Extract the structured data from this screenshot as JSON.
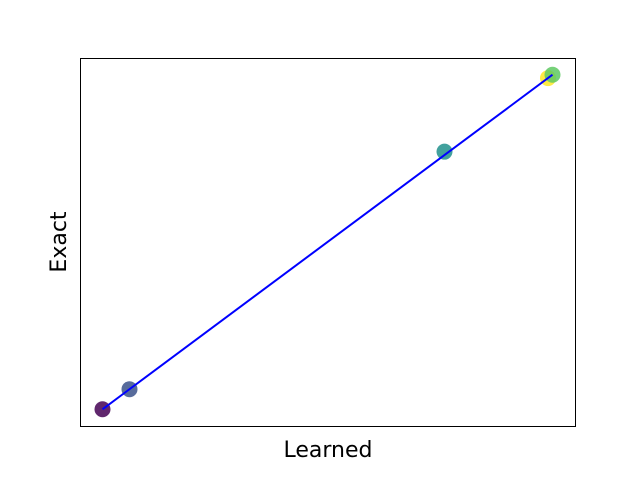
{
  "chart_data": {
    "type": "scatter",
    "xlabel": "Learned",
    "ylabel": "Exact",
    "ticks_visible": false,
    "grid": false,
    "xlim": [
      -0.05,
      1.05
    ],
    "ylim": [
      -0.05,
      1.05
    ],
    "points": [
      {
        "x": 0.0,
        "y": 0.0,
        "color": "#440154"
      },
      {
        "x": 0.06,
        "y": 0.06,
        "color": "#3b528b"
      },
      {
        "x": 0.76,
        "y": 0.77,
        "color": "#21918c"
      },
      {
        "x": 0.99,
        "y": 0.99,
        "color": "#fde725"
      },
      {
        "x": 1.0,
        "y": 1.0,
        "color": "#5ec962"
      }
    ],
    "fit_line": {
      "x": [
        0.0,
        1.0
      ],
      "y": [
        0.0,
        1.0
      ],
      "color": "#0000ff"
    }
  }
}
